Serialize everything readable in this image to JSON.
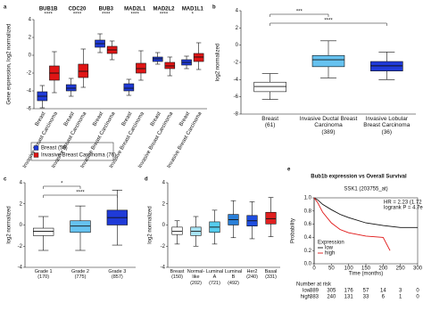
{
  "chart_data": [
    {
      "type": "box",
      "panel": "a",
      "ylabel": "Gene expression, log2 normalized",
      "categories": [
        "BUB1B",
        "CDC20",
        "BUB3",
        "MAD2L1",
        "MAD2L2",
        "MAD1L1"
      ],
      "significance": [
        "****",
        "****",
        "****",
        "****",
        "****",
        "*"
      ],
      "ylim": [
        -6,
        4
      ],
      "yticks": [
        -6,
        -4,
        -2,
        0,
        2,
        4
      ],
      "series": [
        {
          "name": "Breast",
          "legend_label": "Breast (59)",
          "color": "#1f3ad8",
          "min": [
            -5.9,
            -4.6,
            0.3,
            -4.5,
            -1.0,
            -1.5
          ],
          "q1": [
            -5.1,
            -4.0,
            0.9,
            -4.0,
            -0.7,
            -1.1
          ],
          "median": [
            -4.6,
            -3.7,
            1.3,
            -3.7,
            -0.4,
            -0.8
          ],
          "q3": [
            -4.1,
            -3.3,
            1.7,
            -3.2,
            -0.2,
            -0.5
          ],
          "max": [
            -3.4,
            -2.6,
            2.4,
            -2.7,
            0.3,
            -0.1
          ]
        },
        {
          "name": "Invasive Breast Carcinoma",
          "legend_label": "Invasive Breast Carcinoma (76)",
          "color": "#e01515",
          "min": [
            -4.2,
            -3.6,
            -0.5,
            -2.8,
            -2.3,
            -1.6
          ],
          "q1": [
            -2.8,
            -2.5,
            0.2,
            -2.0,
            -1.5,
            -0.7
          ],
          "median": [
            -2.0,
            -1.8,
            0.6,
            -1.5,
            -1.2,
            -0.2
          ],
          "q3": [
            -1.2,
            -1.0,
            1.0,
            -0.9,
            -0.8,
            0.2
          ],
          "max": [
            0.4,
            0.7,
            1.6,
            0.5,
            -0.2,
            1.4
          ]
        }
      ]
    },
    {
      "type": "box",
      "panel": "b",
      "ylabel": "log2 normalized",
      "categories": [
        "Breast",
        "Invasive Ductal Breast Carcinoma",
        "Invasive Lobular Breast Carcinoma"
      ],
      "counts": [
        "(61)",
        "(389)",
        "(36)"
      ],
      "annotations": [
        "****",
        "***"
      ],
      "ylim": [
        -8,
        4
      ],
      "yticks": [
        -8,
        -6,
        -4,
        -2,
        0,
        2,
        4
      ],
      "series": [
        {
          "colors": [
            "#ffffff",
            "#66c2f0",
            "#1f3ad8"
          ],
          "min": [
            -6.3,
            -3.8,
            -4.0
          ],
          "q1": [
            -5.4,
            -2.5,
            -3.0
          ],
          "median": [
            -4.8,
            -1.7,
            -2.4
          ],
          "q3": [
            -4.3,
            -1.2,
            -1.9
          ],
          "max": [
            -3.3,
            0.5,
            -0.8
          ]
        }
      ]
    },
    {
      "type": "box",
      "panel": "c",
      "ylabel": "log2 normalized",
      "categories": [
        "Grade 1",
        "Grade 2",
        "Grade 3"
      ],
      "counts": [
        "(170)",
        "(775)",
        "(857)"
      ],
      "annotations": [
        "****",
        "*"
      ],
      "ylim": [
        -4,
        4
      ],
      "yticks": [
        -4,
        -2,
        0,
        2,
        4
      ],
      "series": [
        {
          "colors": [
            "#ffffff",
            "#66c2f0",
            "#1f3ad8"
          ],
          "min": [
            -2.4,
            -2.4,
            -1.9
          ],
          "q1": [
            -1.0,
            -0.7,
            0.0
          ],
          "median": [
            -0.6,
            -0.1,
            0.7
          ],
          "q3": [
            -0.3,
            0.4,
            1.4
          ],
          "max": [
            0.8,
            1.8,
            3.3
          ]
        }
      ]
    },
    {
      "type": "box",
      "panel": "d",
      "ylabel": "log2 normalized",
      "categories": [
        "Breast",
        "Normal-like",
        "Luminal A",
        "Luminal B",
        "Her2",
        "Basal"
      ],
      "counts": [
        "(150)",
        "(202)",
        "(721)",
        "(492)",
        "(240)",
        "(331)"
      ],
      "ylim": [
        -4,
        4
      ],
      "yticks": [
        -4,
        -2,
        0,
        2,
        4
      ],
      "series": [
        {
          "colors": [
            "#ffffff",
            "#a8e4f4",
            "#55ccee",
            "#2a7fd8",
            "#1f4ee0",
            "#e02020"
          ],
          "min": [
            -1.8,
            -2.0,
            -1.8,
            -1.2,
            -1.3,
            -1.1
          ],
          "q1": [
            -0.9,
            -1.0,
            -0.7,
            0.0,
            -0.1,
            0.1
          ],
          "median": [
            -0.6,
            -0.6,
            -0.2,
            0.5,
            0.4,
            0.6
          ],
          "q3": [
            -0.2,
            -0.2,
            0.3,
            1.0,
            0.9,
            1.2
          ],
          "max": [
            0.4,
            0.8,
            1.4,
            2.3,
            2.2,
            2.6
          ]
        }
      ]
    },
    {
      "type": "km",
      "panel": "e",
      "title": "Bub1b expression vs Overall Survival",
      "subtitle": "SSK1 (203755_at)",
      "hr": "HR = 2.23 (1.72 − 2.88)",
      "logrank": "logrank P = 4.7e−10",
      "xlabel": "Time (months)",
      "ylabel": "Probability",
      "legend_title": "Expression",
      "risk_title": "Number at risk",
      "xlim": [
        0,
        300
      ],
      "xticks": [
        0,
        50,
        100,
        150,
        200,
        250,
        300
      ],
      "ylim": [
        0,
        1
      ],
      "yticks": [
        {
          "value": 0,
          "label": "0.0"
        },
        {
          "value": 0.2,
          "label": "0.2"
        },
        {
          "value": 0.4,
          "label": "0.4"
        },
        {
          "value": 0.6,
          "label": "0.6"
        },
        {
          "value": 0.8,
          "label": "0.8"
        },
        {
          "value": 1,
          "label": "1.0"
        }
      ],
      "series": [
        {
          "name": "low",
          "color": "#111111",
          "x": [
            0,
            10,
            25,
            50,
            75,
            100,
            150,
            200,
            250,
            300
          ],
          "values": [
            1,
            0.97,
            0.9,
            0.82,
            0.75,
            0.7,
            0.62,
            0.58,
            0.55,
            0.55
          ],
          "at_risk": [
            389,
            305,
            176,
            57,
            14,
            3,
            0
          ]
        },
        {
          "name": "high",
          "color": "#e01515",
          "x": [
            0,
            10,
            25,
            50,
            75,
            100,
            150,
            200,
            220
          ],
          "values": [
            1,
            0.93,
            0.78,
            0.62,
            0.52,
            0.47,
            0.42,
            0.4,
            0.2
          ],
          "at_risk": [
            383,
            240,
            131,
            33,
            6,
            1,
            0
          ]
        }
      ]
    }
  ]
}
